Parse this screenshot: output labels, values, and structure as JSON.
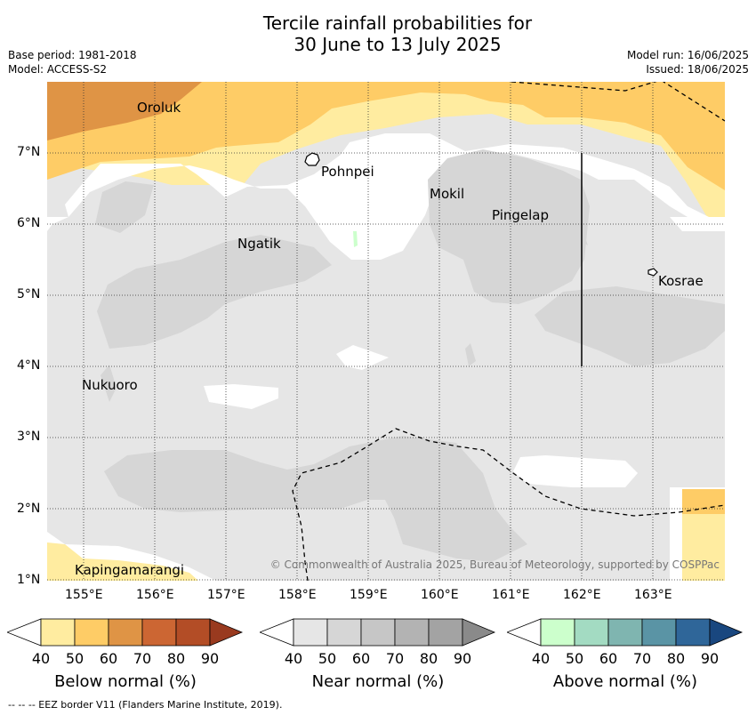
{
  "title": {
    "line1": "Tercile rainfall probabilities for",
    "line2": "30 June to 13 July 2025"
  },
  "info": {
    "base_period": "Base period: 1981-2018",
    "model": "Model: ACCESS-S2",
    "model_run": "Model run: 16/06/2025",
    "issued": "Issued: 18/06/2025"
  },
  "colors": {
    "near_normal_40": "#e6e6e6",
    "near_normal_50": "#d6d6d6",
    "below_normal_40": "#ffeca0",
    "below_normal_50": "#fecc66",
    "below_normal_60": "#df9445",
    "above_normal_40": "#ccffcc",
    "eez_border": "#000000"
  },
  "places": [
    {
      "name": "Oroluk"
    },
    {
      "name": "Pohnpei"
    },
    {
      "name": "Mokil"
    },
    {
      "name": "Pingelap"
    },
    {
      "name": "Ngatik"
    },
    {
      "name": "Kosrae"
    },
    {
      "name": "Nukuoro"
    },
    {
      "name": "Kapingamarangi"
    }
  ],
  "axes": {
    "lat_ticks": [
      "7°N",
      "6°N",
      "5°N",
      "4°N",
      "3°N",
      "2°N",
      "1°N"
    ],
    "lon_ticks": [
      "155°E",
      "156°E",
      "157°E",
      "158°E",
      "159°E",
      "160°E",
      "161°E",
      "162°E",
      "163°E"
    ],
    "lat_range": [
      1,
      8
    ],
    "lon_range": [
      154.5,
      164
    ]
  },
  "copyright": "© Commonwealth of Australia 2025, Bureau of Meteorology, supported by COSPPac",
  "colorbars": [
    {
      "label": "Below normal (%)",
      "values": [
        "40",
        "50",
        "60",
        "70",
        "80",
        "90"
      ],
      "colors": [
        "#ffeca0",
        "#fecc66",
        "#df9445",
        "#cc6633",
        "#b34d26",
        "#993a1f"
      ]
    },
    {
      "label": "Near normal (%)",
      "values": [
        "40",
        "50",
        "60",
        "70",
        "80",
        "90"
      ],
      "colors": [
        "#e6e6e6",
        "#d6d6d6",
        "#c6c6c6",
        "#b3b3b3",
        "#a3a3a3",
        "#8a8a8a"
      ]
    },
    {
      "label": "Above normal (%)",
      "values": [
        "40",
        "50",
        "60",
        "70",
        "80",
        "90"
      ],
      "colors": [
        "#ccffcc",
        "#a3dbc2",
        "#7fb5b0",
        "#5a94a5",
        "#2f6699",
        "#19477f"
      ]
    }
  ],
  "footnote": "--  --  -- EEZ border V11 (Flanders Marine Institute, 2019)."
}
